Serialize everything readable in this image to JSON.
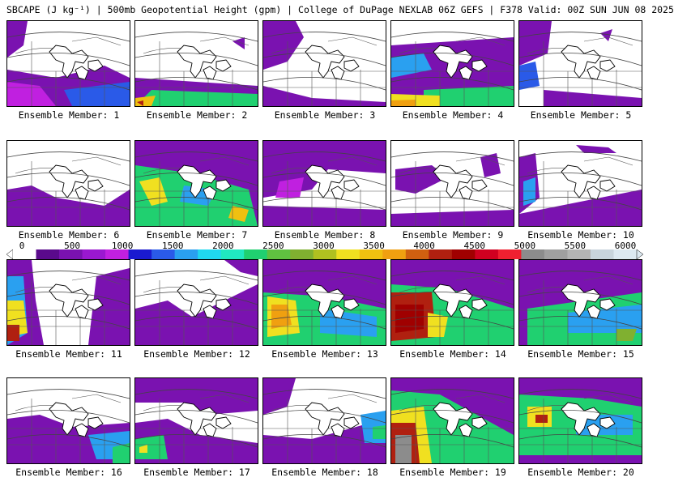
{
  "title": "SBCAPE (J kg⁻¹) | 500mb Geopotential Height (gpm) | College of DuPage NEXLAB 06Z GEFS | F378 Valid: 00Z SUN JUN 08 2025",
  "colorbar": {
    "tick_labels": [
      "0",
      "500",
      "1000",
      "1500",
      "2000",
      "2500",
      "3000",
      "3500",
      "4000",
      "4500",
      "5000",
      "5500",
      "6000"
    ],
    "colors": [
      "#ffffff",
      "#5a0a8c",
      "#7a12b0",
      "#9a18d0",
      "#c020e0",
      "#1a1ad0",
      "#2a5ae8",
      "#2aa0f0",
      "#20d8f0",
      "#20e8c0",
      "#20d070",
      "#60c040",
      "#80b030",
      "#b0c020",
      "#f0e020",
      "#f0c010",
      "#f0a010",
      "#d06010",
      "#b02010",
      "#a00000",
      "#d00020",
      "#f02030",
      "#8c8c8c",
      "#a0a0a0",
      "#b4b4b4",
      "#c8d4dc",
      "#dce8f0"
    ]
  },
  "panels": [
    {
      "label": "Ensemble Member: 1"
    },
    {
      "label": "Ensemble Member: 2"
    },
    {
      "label": "Ensemble Member: 3"
    },
    {
      "label": "Ensemble Member: 4"
    },
    {
      "label": "Ensemble Member: 5"
    },
    {
      "label": "Ensemble Member: 6"
    },
    {
      "label": "Ensemble Member: 7"
    },
    {
      "label": "Ensemble Member: 8"
    },
    {
      "label": "Ensemble Member: 9"
    },
    {
      "label": "Ensemble Member: 10"
    },
    {
      "label": "Ensemble Member: 11"
    },
    {
      "label": "Ensemble Member: 12"
    },
    {
      "label": "Ensemble Member: 13"
    },
    {
      "label": "Ensemble Member: 14"
    },
    {
      "label": "Ensemble Member: 15"
    },
    {
      "label": "Ensemble Member: 16"
    },
    {
      "label": "Ensemble Member: 17"
    },
    {
      "label": "Ensemble Member: 18"
    },
    {
      "label": "Ensemble Member: 19"
    },
    {
      "label": "Ensemble Member: 20"
    }
  ]
}
